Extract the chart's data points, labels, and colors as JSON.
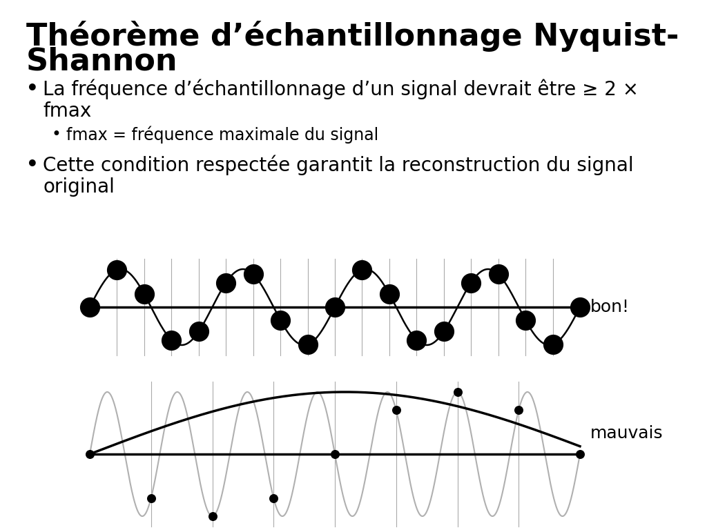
{
  "title_line1": "Théorème d’échantillonnage Nyquist-",
  "title_line2": "Shannon",
  "bullet1_line1": "La fréquence d’échantillonnage d’un signal devrait être ≥ 2 ×",
  "bullet1_line2": "fmax",
  "bullet1_sub": "fmax = fréquence maximale du signal",
  "bullet2_line1": "Cette condition respectée garantit la reconstruction du signal",
  "bullet2_line2": "original",
  "label_bon": "bon!",
  "label_mauvais": "mauvais",
  "bg_color": "#ffffff",
  "text_color": "#000000",
  "gray_color": "#b0b0b0",
  "grid_color": "#aaaaaa",
  "title_fontsize": 32,
  "bullet_fontsize": 20,
  "subbullet_fontsize": 17,
  "label_fontsize": 18,
  "bon_freq": 4,
  "bon_n_samples": 19,
  "mauvais_orig_freq": 7,
  "mauvais_alias_freq": 0.48,
  "mauvais_n_samples": 9
}
